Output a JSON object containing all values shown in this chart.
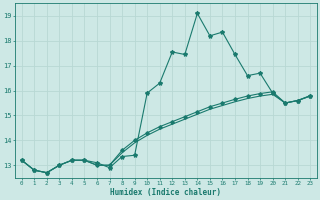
{
  "title": "",
  "xlabel": "Humidex (Indice chaleur)",
  "background_color": "#cde8e5",
  "grid_color": "#b8d8d4",
  "line_color": "#1a7a6e",
  "xlim": [
    -0.5,
    23.5
  ],
  "ylim": [
    12.5,
    19.5
  ],
  "xticks": [
    0,
    1,
    2,
    3,
    4,
    5,
    6,
    7,
    8,
    9,
    10,
    11,
    12,
    13,
    14,
    15,
    16,
    17,
    18,
    19,
    20,
    21,
    22,
    23
  ],
  "yticks": [
    13,
    14,
    15,
    16,
    17,
    18,
    19
  ],
  "series1_x": [
    0,
    1,
    2,
    3,
    4,
    5,
    6,
    7,
    8,
    9,
    10,
    11,
    12,
    13,
    14,
    15,
    16,
    17,
    18,
    19,
    20,
    21,
    22,
    23
  ],
  "series1_y": [
    13.2,
    12.8,
    12.7,
    13.0,
    13.2,
    13.2,
    13.1,
    12.9,
    13.35,
    13.4,
    15.9,
    16.3,
    17.55,
    17.45,
    19.1,
    18.2,
    18.35,
    17.45,
    16.6,
    16.7,
    15.9,
    15.5,
    15.6,
    15.8
  ],
  "series2_x": [
    0,
    1,
    2,
    3,
    4,
    5,
    6,
    7,
    8,
    9,
    10,
    11,
    12,
    13,
    14,
    15,
    16,
    17,
    18,
    19,
    20,
    21,
    22,
    23
  ],
  "series2_y": [
    13.2,
    12.8,
    12.7,
    13.0,
    13.2,
    13.2,
    13.0,
    13.0,
    13.6,
    14.0,
    14.3,
    14.55,
    14.75,
    14.95,
    15.15,
    15.35,
    15.5,
    15.65,
    15.78,
    15.88,
    15.95,
    15.5,
    15.6,
    15.78
  ],
  "series3_x": [
    0,
    1,
    2,
    3,
    4,
    5,
    6,
    7,
    8,
    9,
    10,
    11,
    12,
    13,
    14,
    15,
    16,
    17,
    18,
    19,
    20,
    21,
    22,
    23
  ],
  "series3_y": [
    13.2,
    12.8,
    12.7,
    13.0,
    13.2,
    13.2,
    13.0,
    13.0,
    13.5,
    13.9,
    14.2,
    14.45,
    14.65,
    14.85,
    15.05,
    15.25,
    15.4,
    15.55,
    15.68,
    15.78,
    15.85,
    15.5,
    15.6,
    15.78
  ]
}
